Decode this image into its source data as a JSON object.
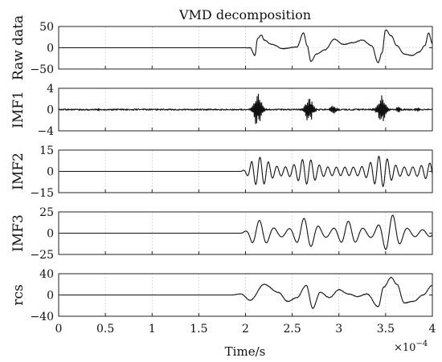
{
  "chart_data": {
    "type": "line",
    "title": "VMD decomposition",
    "xlabel": "Time/s",
    "x_exponent_label": "×10",
    "x_exponent_power": "−4",
    "x_ticks": [
      0,
      0.5,
      1,
      1.5,
      2,
      2.5,
      3,
      3.5,
      4
    ],
    "x_tick_labels": [
      "0",
      "0.5",
      "1",
      "1.5",
      "2",
      "2.5",
      "3",
      "3.5",
      "4"
    ],
    "xlim": [
      0,
      4
    ],
    "x_units": "×1e-4 s",
    "grid": true,
    "panels": [
      {
        "name": "Raw data",
        "ylabel": "Raw data",
        "ylim": [
          -50,
          50
        ],
        "yticks": [
          -50,
          0,
          50
        ],
        "ytick_labels": [
          "−50",
          "0",
          "50"
        ],
        "x": [
          0,
          1.9,
          2.05,
          2.1,
          2.13,
          2.17,
          2.2,
          2.28,
          2.4,
          2.55,
          2.62,
          2.66,
          2.7,
          2.76,
          2.85,
          2.95,
          3.05,
          3.15,
          3.25,
          3.35,
          3.42,
          3.46,
          3.5,
          3.56,
          3.62,
          3.7,
          3.78,
          3.86,
          3.92,
          3.96,
          4.0
        ],
        "y": [
          0,
          0,
          0,
          -18,
          22,
          30,
          18,
          8,
          -2,
          2,
          35,
          5,
          -32,
          -15,
          -5,
          20,
          8,
          12,
          18,
          5,
          -35,
          -12,
          42,
          28,
          5,
          -15,
          -18,
          -10,
          5,
          35,
          10
        ]
      },
      {
        "name": "IMF1",
        "ylabel": "IMF1",
        "ylim": [
          -4,
          4
        ],
        "yticks": [
          -4,
          0,
          4
        ],
        "ytick_labels": [
          "−4",
          "0",
          "4"
        ],
        "bursts": [
          {
            "center": 0.43,
            "width": 0.01,
            "amp": 0.3
          },
          {
            "center": 2.13,
            "width": 0.05,
            "amp": 3.5
          },
          {
            "center": 2.68,
            "width": 0.05,
            "amp": 2.6
          },
          {
            "center": 2.94,
            "width": 0.04,
            "amp": 0.8
          },
          {
            "center": 3.46,
            "width": 0.05,
            "amp": 2.8
          },
          {
            "center": 3.64,
            "width": 0.03,
            "amp": 0.5
          },
          {
            "center": 3.84,
            "width": 0.03,
            "amp": 0.4
          }
        ]
      },
      {
        "name": "IMF2",
        "ylabel": "IMF2",
        "ylim": [
          -15,
          15
        ],
        "yticks": [
          -15,
          0,
          15
        ],
        "ytick_labels": [
          "−15",
          "0",
          "15"
        ],
        "oscillation": {
          "start": 1.95,
          "freq_cycles": 11,
          "peaks": [
            [
              2.15,
              10
            ],
            [
              2.65,
              9
            ],
            [
              3.45,
              11
            ],
            [
              4.0,
              6
            ]
          ],
          "base_amp": 3
        }
      },
      {
        "name": "IMF3",
        "ylabel": "IMF3",
        "ylim": [
          -25,
          25
        ],
        "yticks": [
          -25,
          0,
          25
        ],
        "ytick_labels": [
          "−25",
          "0",
          "25"
        ],
        "oscillation": {
          "start": 1.95,
          "freq_cycles": 6.3,
          "peaks": [
            [
              2.15,
              15
            ],
            [
              2.65,
              18
            ],
            [
              3.1,
              14
            ],
            [
              3.55,
              22
            ]
          ],
          "base_amp": 4
        }
      },
      {
        "name": "rcs",
        "ylabel": "rcs",
        "ylim": [
          -40,
          40
        ],
        "yticks": [
          -40,
          0,
          40
        ],
        "ytick_labels": [
          "−40",
          "0",
          "40"
        ],
        "x": [
          0,
          1.85,
          1.95,
          2.05,
          2.2,
          2.35,
          2.45,
          2.55,
          2.65,
          2.72,
          2.8,
          2.9,
          3.0,
          3.1,
          3.2,
          3.3,
          3.42,
          3.48,
          3.56,
          3.62,
          3.7,
          3.8,
          3.9,
          4.0
        ],
        "y": [
          0,
          0,
          2,
          -10,
          20,
          5,
          -12,
          -5,
          18,
          -25,
          5,
          -5,
          10,
          2,
          -3,
          2,
          -22,
          15,
          33,
          20,
          -15,
          -12,
          0,
          18
        ]
      }
    ]
  }
}
